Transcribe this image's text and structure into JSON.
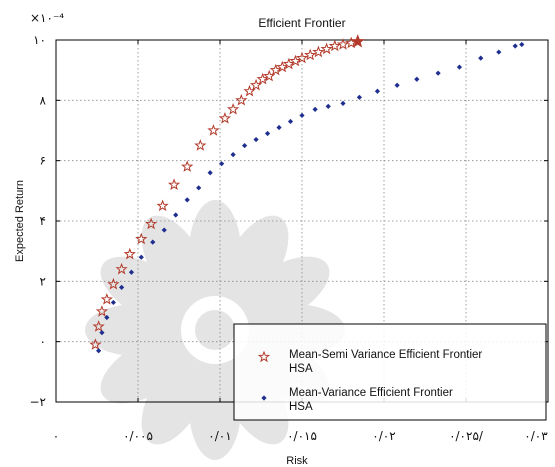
{
  "chart_data": {
    "type": "scatter",
    "title": "Efficient Frontier",
    "xlabel": "Risk",
    "ylabel": "Expected Return",
    "y_multiplier": "×۱۰⁻⁴",
    "xlim": [
      0,
      0.03
    ],
    "ylim": [
      -2,
      10
    ],
    "grid": true,
    "legend_position": "bottom-right",
    "x_tick_labels": [
      "۰",
      "۰/۰۰۵",
      "۰/۰۱",
      "۰/۰۱۵",
      "۰/۰۲",
      "۰/۰۲۵/",
      "۰/۰۳"
    ],
    "y_tick_labels": [
      "−۲",
      "۰",
      "۲",
      "۴",
      "۶",
      "۸",
      "۱۰"
    ],
    "x_ticks": [
      0,
      0.005,
      0.01,
      0.015,
      0.02,
      0.025,
      0.03
    ],
    "y_ticks": [
      -2,
      0,
      2,
      4,
      6,
      8,
      10
    ],
    "series": [
      {
        "name": "Mean-Semi Variance Efficient Frontier\nHSA",
        "marker": "star",
        "color": "#b23a2a",
        "x": [
          0.0024,
          0.0026,
          0.0028,
          0.0031,
          0.0035,
          0.004,
          0.0045,
          0.0052,
          0.0058,
          0.0065,
          0.0072,
          0.008,
          0.0088,
          0.0096,
          0.0103,
          0.0108,
          0.0113,
          0.0118,
          0.0122,
          0.0126,
          0.013,
          0.0134,
          0.0138,
          0.0142,
          0.0146,
          0.015,
          0.0155,
          0.016,
          0.0165,
          0.017,
          0.0175,
          0.018,
          0.0184
        ],
        "y": [
          -0.1,
          0.5,
          1.0,
          1.4,
          1.9,
          2.4,
          2.9,
          3.4,
          3.9,
          4.5,
          5.2,
          5.8,
          6.5,
          7.0,
          7.4,
          7.7,
          8.0,
          8.3,
          8.5,
          8.7,
          8.8,
          9.0,
          9.1,
          9.2,
          9.3,
          9.4,
          9.5,
          9.6,
          9.7,
          9.8,
          9.85,
          9.9,
          9.95
        ]
      },
      {
        "name": "Mean-Variance Efficient Frontier\nHSA",
        "marker": "diamond",
        "color": "#1f2f8f",
        "x": [
          0.0026,
          0.0028,
          0.0031,
          0.0035,
          0.004,
          0.0046,
          0.0052,
          0.0059,
          0.0066,
          0.0073,
          0.008,
          0.0087,
          0.0094,
          0.0101,
          0.0108,
          0.0115,
          0.0122,
          0.0129,
          0.0136,
          0.0143,
          0.015,
          0.0158,
          0.0166,
          0.0175,
          0.0185,
          0.0196,
          0.0208,
          0.022,
          0.0233,
          0.0246,
          0.0259,
          0.027,
          0.028,
          0.0284
        ],
        "y": [
          -0.3,
          0.3,
          0.8,
          1.3,
          1.8,
          2.3,
          2.8,
          3.3,
          3.7,
          4.2,
          4.7,
          5.1,
          5.6,
          5.9,
          6.2,
          6.5,
          6.7,
          6.9,
          7.1,
          7.3,
          7.5,
          7.7,
          7.8,
          7.9,
          8.1,
          8.3,
          8.5,
          8.7,
          8.9,
          9.1,
          9.4,
          9.6,
          9.8,
          9.85
        ]
      }
    ]
  }
}
